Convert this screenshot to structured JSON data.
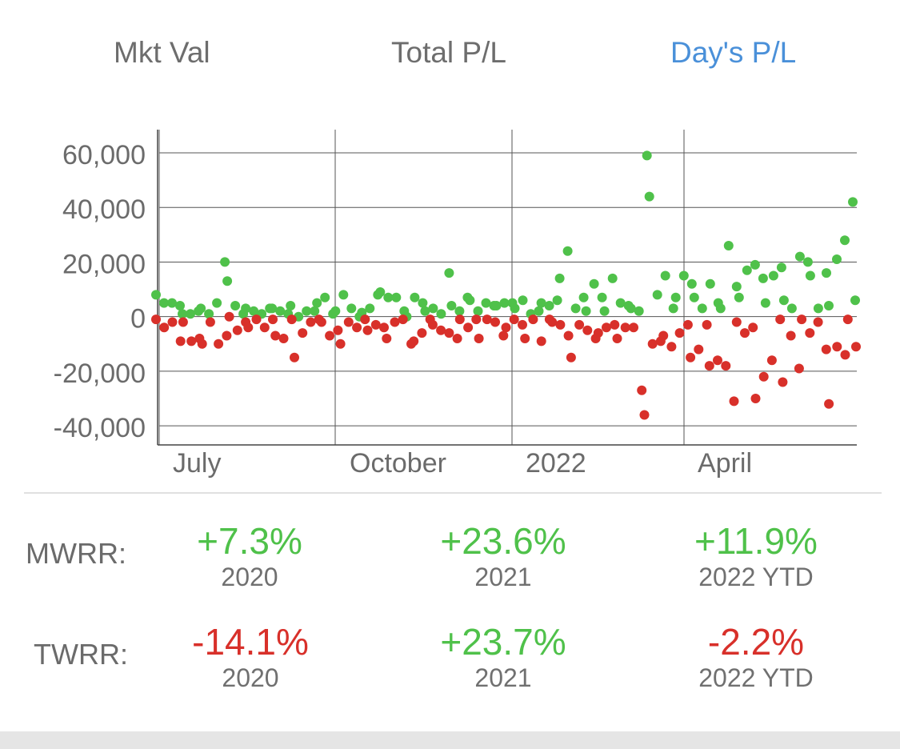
{
  "tabs": {
    "mkt_val": "Mkt Val",
    "total_pl": "Total P/L",
    "days_pl": "Day's P/L",
    "selected": "Day's P/L"
  },
  "colors": {
    "positive": "#4fc14a",
    "negative": "#d8302a",
    "tab_active": "#4a90d9",
    "tab_inactive": "#6d6d6d"
  },
  "chart_data": {
    "type": "scatter",
    "title": "",
    "xlabel": "",
    "ylabel": "",
    "x_ticks": [
      "July",
      "October",
      "2022",
      "April"
    ],
    "y_ticks": [
      "60,000",
      "40,000",
      "20,000",
      "0",
      "-20,000",
      "-40,000"
    ],
    "ylim": [
      -47000,
      68500
    ],
    "grid": true,
    "series": [
      {
        "color": "green",
        "values": [
          8000,
          5000,
          5000,
          4000,
          1000,
          1000,
          2000,
          3000,
          1000,
          5000,
          20000,
          13000,
          4000,
          1000,
          3000,
          2000,
          1000,
          3000,
          3000,
          2000,
          1000,
          4000,
          0,
          2000,
          2000,
          5000,
          7000,
          1000,
          2000,
          8000,
          3000,
          0,
          1500,
          3000,
          8000,
          9000,
          7000,
          7000,
          2000,
          0,
          7000,
          5000,
          2000,
          3000,
          1000,
          16000,
          4000,
          2000,
          7000,
          6000,
          2000,
          5000,
          4000,
          4000,
          5000,
          5000,
          3000,
          6000,
          1000,
          2000,
          5000,
          4000,
          6000,
          14000,
          24000,
          3000,
          7000,
          2000,
          12000,
          7000,
          2000,
          14000,
          5000,
          4000,
          3000,
          2000,
          59000,
          44000,
          8000,
          15000,
          3000,
          7000,
          15000,
          12000,
          7000,
          3000,
          12000,
          5000,
          3000,
          26000,
          11000,
          7000,
          17000,
          19000,
          14000,
          5000,
          15000,
          18000,
          6000,
          3000,
          22000,
          20000,
          15000,
          3000,
          16000,
          4000,
          21000,
          28000,
          42000,
          6000
        ]
      },
      {
        "color": "red",
        "values": [
          -1000,
          -4000,
          -2000,
          -9000,
          -2000,
          -9000,
          -8000,
          -10000,
          -2000,
          -10000,
          -7000,
          0,
          -5000,
          -2000,
          -4000,
          -1000,
          -4000,
          -1000,
          -7000,
          -8000,
          -1000,
          -15000,
          -6000,
          -2000,
          -1000,
          -2000,
          -7000,
          -5000,
          -10000,
          -2000,
          -4000,
          -1000,
          -5000,
          -3000,
          -4000,
          -8000,
          -2000,
          -1000,
          -10000,
          -9000,
          -6000,
          -1000,
          -3000,
          -5000,
          -6000,
          -8000,
          -1000,
          -4000,
          -1000,
          -8000,
          -1000,
          -2000,
          -7000,
          -4000,
          -1000,
          -3000,
          -8000,
          -1000,
          -9000,
          -1000,
          -2000,
          -3000,
          -7000,
          -15000,
          -3000,
          -5000,
          -8000,
          -6000,
          -4000,
          -3000,
          -8000,
          -4000,
          -4000,
          -27000,
          -36000,
          -10000,
          -9000,
          -7000,
          -11000,
          -6000,
          -3000,
          -15000,
          -12000,
          -3000,
          -18000,
          -16000,
          -18000,
          -31000,
          -2000,
          -6000,
          -4000,
          -30000,
          -22000,
          -16000,
          -1000,
          -24000,
          -7000,
          -19000,
          -1000,
          -6000,
          -2000,
          -12000,
          -32000,
          -11000,
          -14000,
          -1000,
          -11000
        ]
      }
    ]
  },
  "returns": {
    "mwrr": {
      "label": "MWRR:",
      "items": [
        {
          "value": "+7.3%",
          "year": "2020",
          "sign": "pos"
        },
        {
          "value": "+23.6%",
          "year": "2021",
          "sign": "pos"
        },
        {
          "value": "+11.9%",
          "year": "2022 YTD",
          "sign": "pos"
        }
      ]
    },
    "twrr": {
      "label": "TWRR:",
      "items": [
        {
          "value": "-14.1%",
          "year": "2020",
          "sign": "neg"
        },
        {
          "value": "+23.7%",
          "year": "2021",
          "sign": "pos"
        },
        {
          "value": "-2.2%",
          "year": "2022 YTD",
          "sign": "neg"
        }
      ]
    }
  }
}
